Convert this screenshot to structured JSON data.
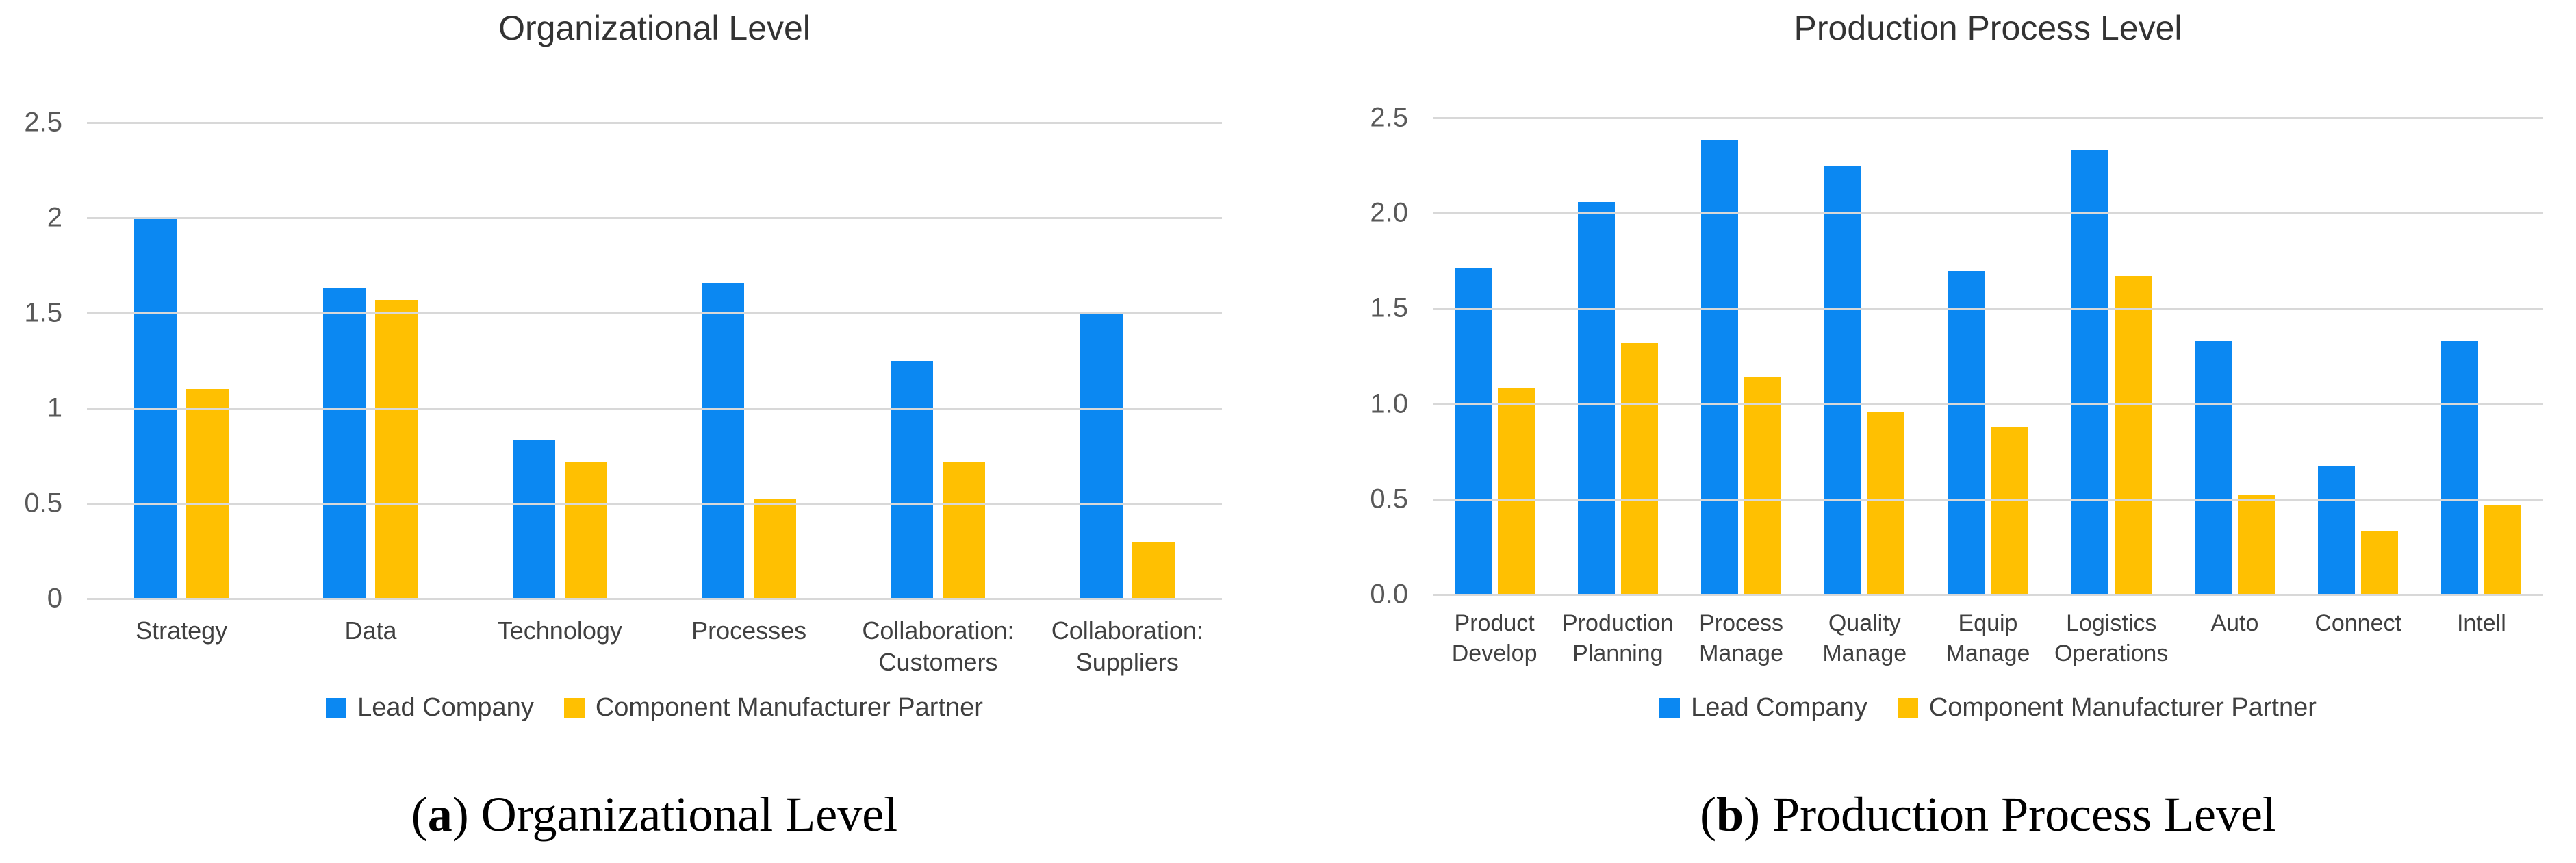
{
  "colors": {
    "lead": "#0B88F2",
    "partner": "#FFC001",
    "gridline": "#D8D8D8",
    "axis_text": "#595959",
    "title_text": "#333333"
  },
  "legend": {
    "items": [
      {
        "label": "Lead Company",
        "color_key": "lead"
      },
      {
        "label": "Component Manufacturer Partner",
        "color_key": "partner"
      }
    ]
  },
  "captions": [
    {
      "letter": "a",
      "title": "Organizational Level"
    },
    {
      "letter": "b",
      "title": "Production Process Level"
    }
  ],
  "chart_data": [
    {
      "type": "bar",
      "title": "Organizational Level",
      "categories": [
        "Strategy",
        "Data",
        "Technology",
        "Processes",
        "Collaboration:\nCustomers",
        "Collaboration:\nSuppliers"
      ],
      "series": [
        {
          "name": "Lead Company",
          "values": [
            2.0,
            1.63,
            0.83,
            1.66,
            1.25,
            1.5
          ]
        },
        {
          "name": "Component Manufacturer Partner",
          "values": [
            1.1,
            1.57,
            0.72,
            0.52,
            0.72,
            0.3
          ]
        }
      ],
      "xlabel": "",
      "ylabel": "",
      "ylim": [
        0,
        2.5
      ],
      "yticks": [
        "0",
        "0.5",
        "1",
        "1.5",
        "2",
        "2.5"
      ],
      "grid": true,
      "legend_position": "bottom"
    },
    {
      "type": "bar",
      "title": "Production Process Level",
      "categories": [
        "Product\nDevelop",
        "Production\nPlanning",
        "Process\nManage",
        "Quality\nManage",
        "Equip\nManage",
        "Logistics\nOperations",
        "Auto",
        "Connect",
        "Intell"
      ],
      "series": [
        {
          "name": "Lead Company",
          "values": [
            1.71,
            2.06,
            2.38,
            2.25,
            1.7,
            2.33,
            1.33,
            0.67,
            1.33
          ]
        },
        {
          "name": "Component Manufacturer Partner",
          "values": [
            1.08,
            1.32,
            1.14,
            0.96,
            0.88,
            1.67,
            0.52,
            0.33,
            0.47
          ]
        }
      ],
      "xlabel": "",
      "ylabel": "",
      "ylim": [
        0,
        2.5
      ],
      "yticks": [
        "0.0",
        "0.5",
        "1.0",
        "1.5",
        "2.0",
        "2.5"
      ],
      "grid": true,
      "legend_position": "bottom"
    }
  ]
}
